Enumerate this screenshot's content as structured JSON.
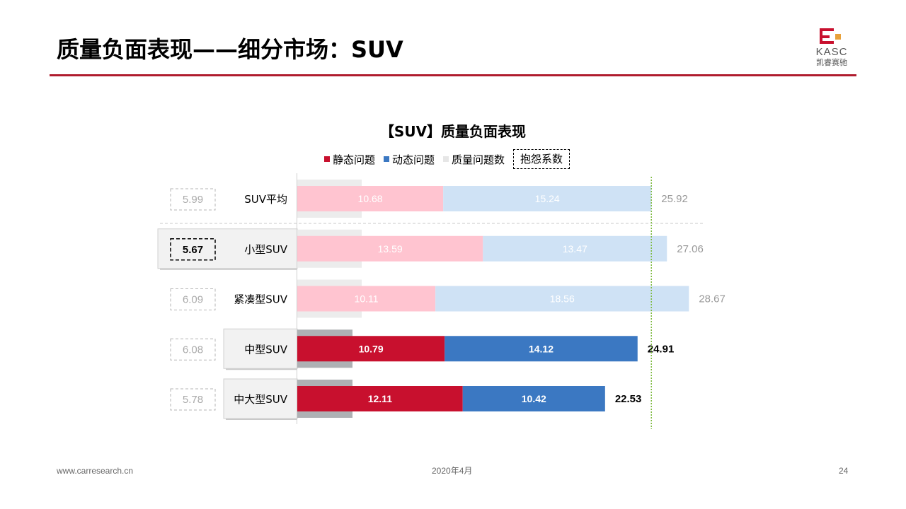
{
  "header": {
    "title": "质量负面表现——细分市场：SUV",
    "logo_text": "KASC",
    "logo_subtext": "凯睿赛驰"
  },
  "colors": {
    "accent": "#b01c2e",
    "static_highlight": "#c8102e",
    "dynamic_highlight": "#3b78c2",
    "static_muted": "#ffc4d0",
    "dynamic_muted": "#cfe2f5",
    "total_problems": "#ececec",
    "total_problems_highlight": "#aeb1b4",
    "reference_line": "#7dba3f"
  },
  "legend": {
    "static": "静态问题",
    "dynamic": "动态问题",
    "total": "质量问题数",
    "complaint": "抱怨系数"
  },
  "chart_data": {
    "type": "bar",
    "orientation": "horizontal",
    "stacked": true,
    "title": "【SUV】质量负面表现",
    "categories": [
      "SUV平均",
      "小型SUV",
      "紧凑型SUV",
      "中型SUV",
      "中大型SUV"
    ],
    "series": [
      {
        "name": "静态问题",
        "values": [
          10.68,
          13.59,
          10.11,
          10.79,
          12.11
        ]
      },
      {
        "name": "动态问题",
        "values": [
          15.24,
          13.47,
          18.56,
          14.12,
          10.42
        ]
      },
      {
        "name": "质量问题数",
        "values": [
          25.92,
          27.06,
          28.67,
          24.91,
          22.53
        ]
      }
    ],
    "complaint_coefficient": {
      "name": "抱怨系数",
      "values": [
        5.99,
        5.67,
        6.09,
        6.08,
        5.78
      ]
    },
    "highlighted": [
      false,
      true,
      false,
      true,
      true
    ],
    "emphasized": [
      false,
      false,
      false,
      true,
      true
    ],
    "reference_line": {
      "value": 25.92
    },
    "legend_position": "top",
    "grid": false
  },
  "footer": {
    "website": "www.carresearch.cn",
    "date": "2020年4月",
    "page": "24"
  }
}
